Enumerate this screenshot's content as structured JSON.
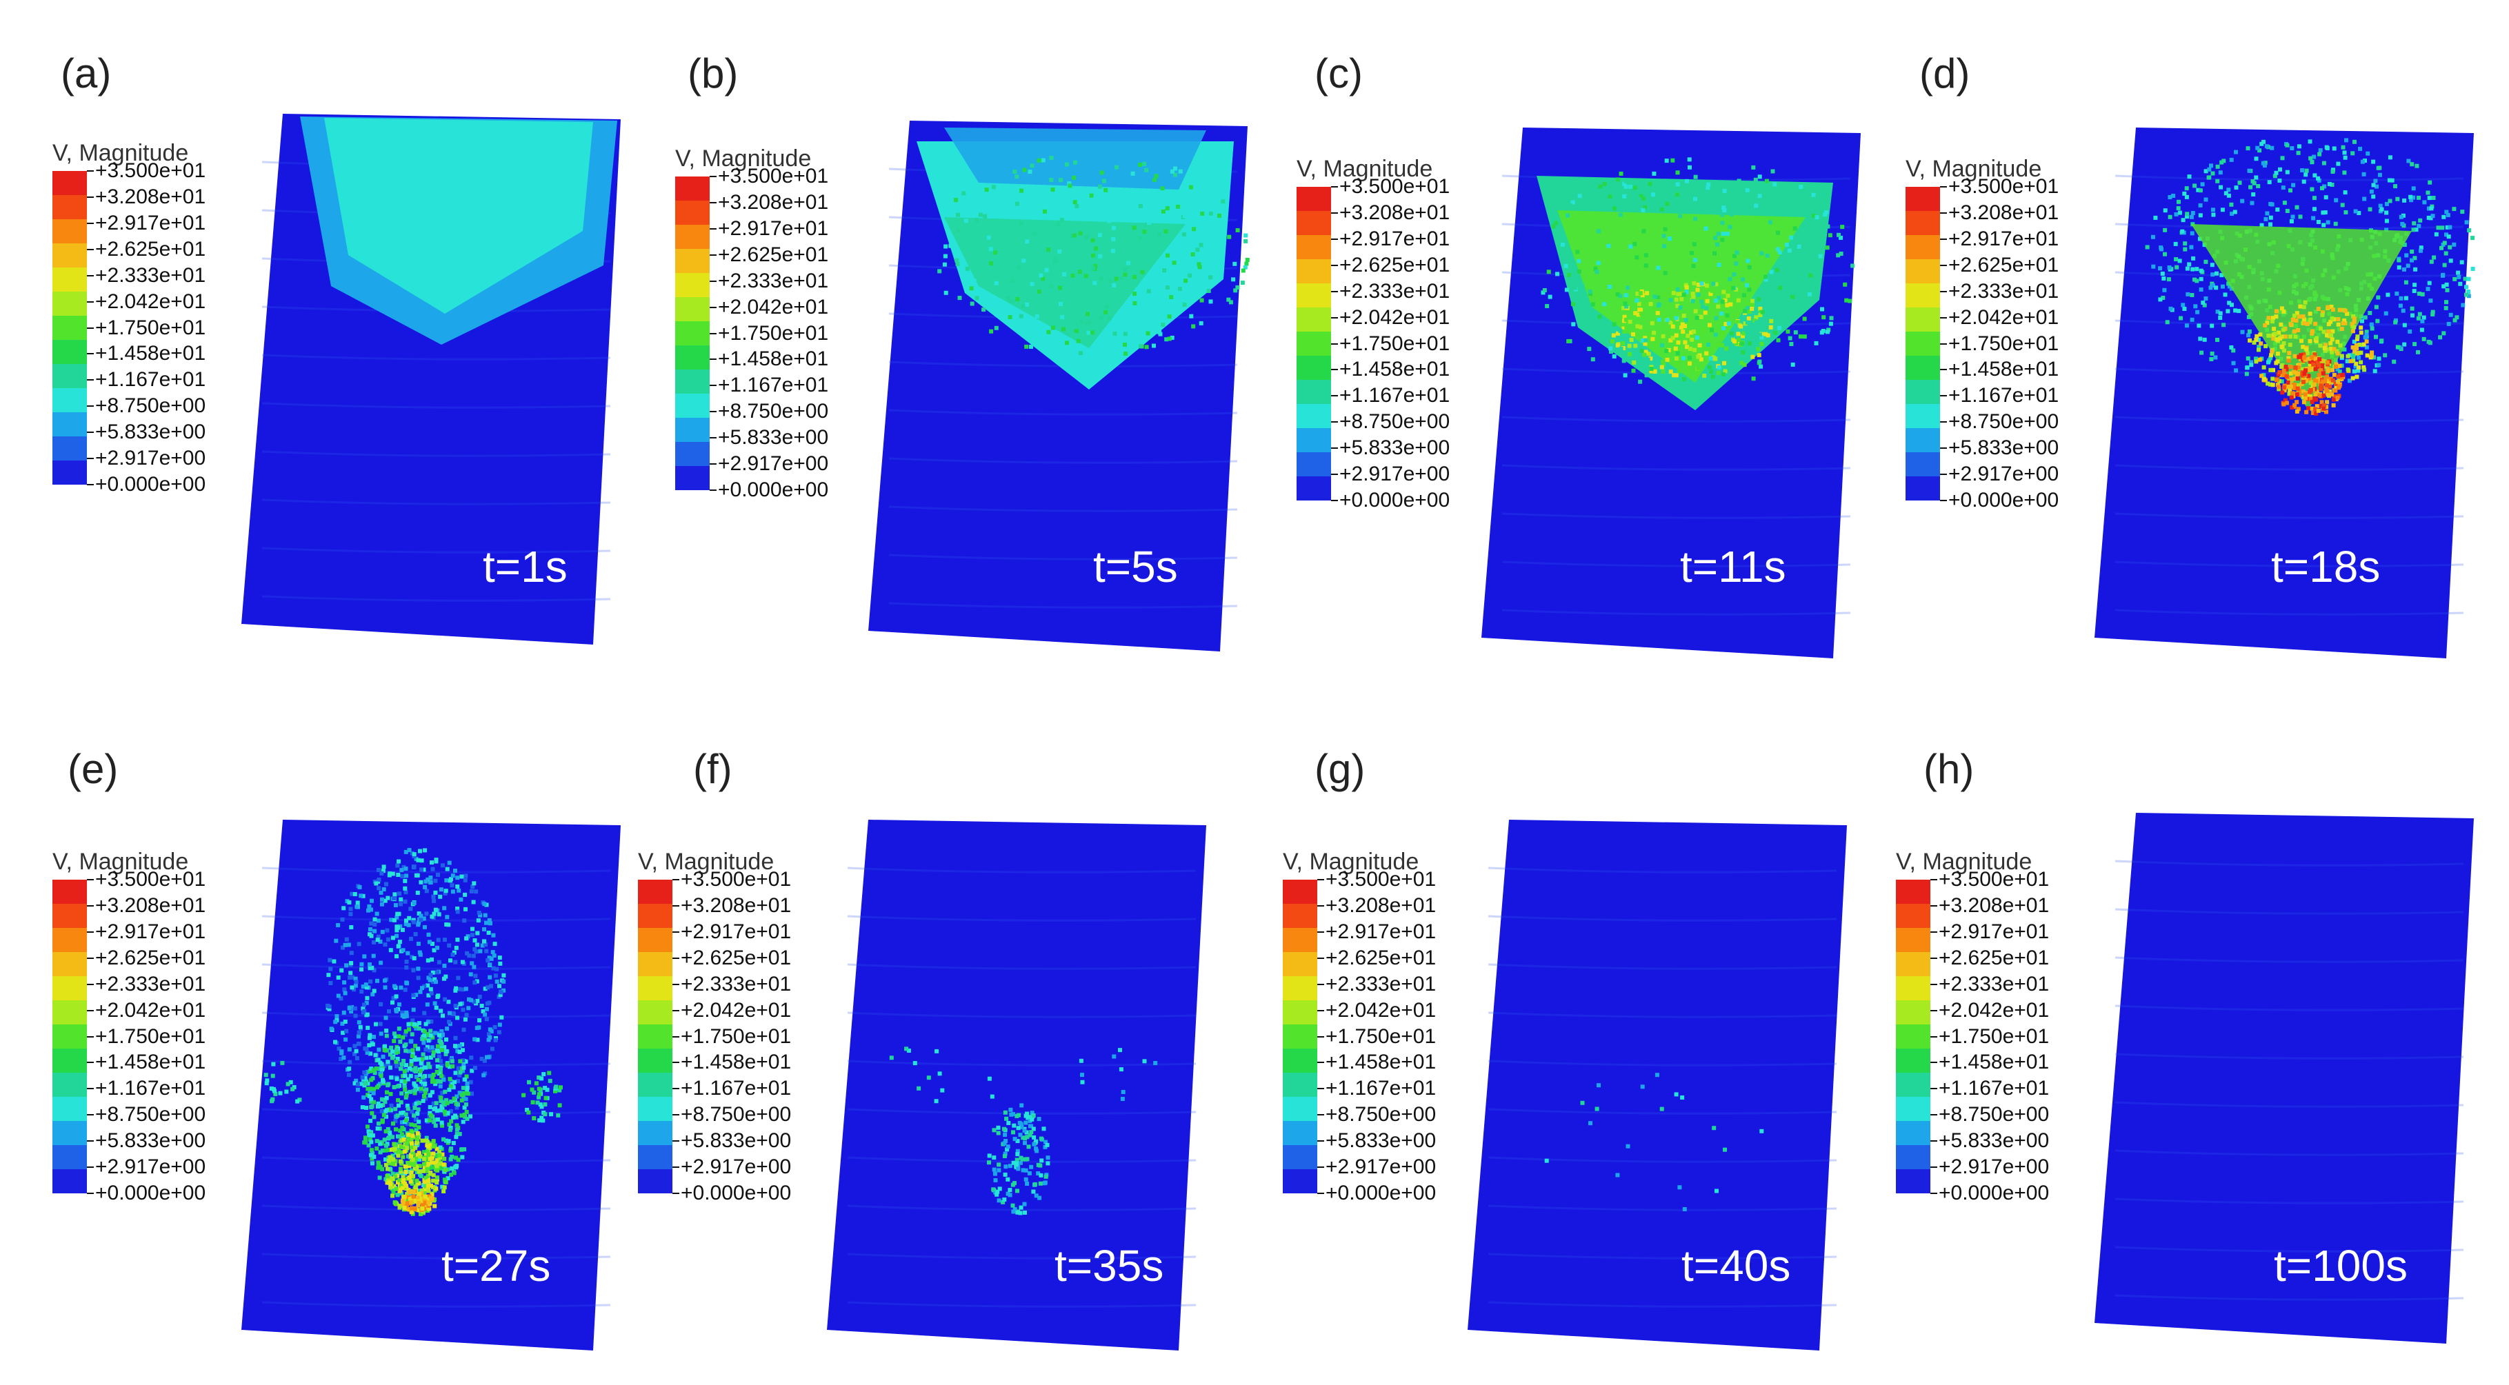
{
  "legend": {
    "title": "V, Magnitude",
    "labels": [
      "+3.500e+01",
      "+3.208e+01",
      "+2.917e+01",
      "+2.625e+01",
      "+2.333e+01",
      "+2.042e+01",
      "+1.750e+01",
      "+1.458e+01",
      "+1.167e+01",
      "+8.750e+00",
      "+5.833e+00",
      "+2.917e+00",
      "+0.000e+00"
    ],
    "colors": [
      "#e6211a",
      "#f24a12",
      "#f7870f",
      "#f4bb17",
      "#e3e418",
      "#a6ea1f",
      "#52e42c",
      "#25d84a",
      "#22d69a",
      "#28e4d8",
      "#1ea6ea",
      "#1f62e8",
      "#1a1fe0"
    ]
  },
  "colors": {
    "background": "#1616e0",
    "speckle": "#3358f0"
  },
  "panels": [
    {
      "letter": "(a)",
      "time": "t=1s",
      "stage": "a"
    },
    {
      "letter": "(b)",
      "time": "t=5s",
      "stage": "b"
    },
    {
      "letter": "(c)",
      "time": "t=11s",
      "stage": "c"
    },
    {
      "letter": "(d)",
      "time": "t=18s",
      "stage": "d"
    },
    {
      "letter": "(e)",
      "time": "t=27s",
      "stage": "e"
    },
    {
      "letter": "(f)",
      "time": "t=35s",
      "stage": "f"
    },
    {
      "letter": "(g)",
      "time": "t=40s",
      "stage": "g"
    },
    {
      "letter": "(h)",
      "time": "t=100s",
      "stage": "h"
    }
  ]
}
